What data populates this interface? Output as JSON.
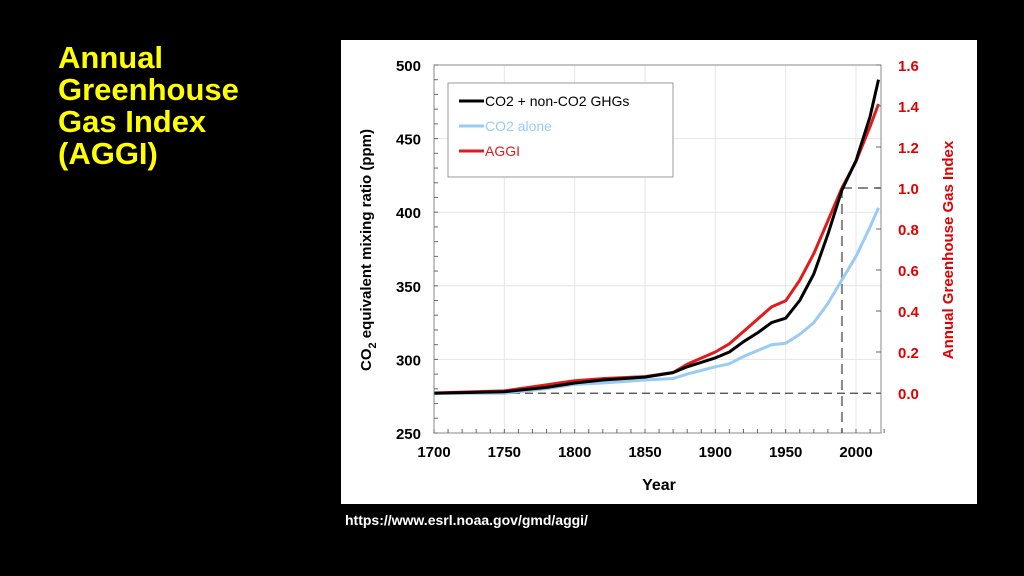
{
  "slide": {
    "title": "Annual\nGreenhouse\nGas Index\n(AGGI)",
    "source_url": "https://www.esrl.noaa.gov/gmd/aggi/"
  },
  "colors": {
    "background": "#000000",
    "title": "#ffff00",
    "black_series": "#000000",
    "blue_series": "#99ccf5",
    "red_series": "#e31a1c",
    "right_axis": "#e00000"
  },
  "chart_data": {
    "type": "line",
    "title": "",
    "xlabel": "Year",
    "ylabel": "CO2 equivalent mixing ratio (ppm)",
    "ylabel_right": "Annual Greenhouse Gas Index",
    "xlim": [
      1700,
      2020
    ],
    "ylim": [
      250,
      500
    ],
    "ylim_right": [
      -0.0,
      1.6
    ],
    "x_ticks": [
      "1700",
      "1750",
      "1800",
      "1850",
      "1900",
      "1950",
      "2000"
    ],
    "y_ticks": [
      "250",
      "300",
      "350",
      "400",
      "450",
      "500"
    ],
    "y_ticks_right": [
      "0.0",
      "0.2",
      "0.4",
      "0.6",
      "0.8",
      "1.0",
      "1.2",
      "1.4",
      "1.6"
    ],
    "grid": true,
    "legend_position": "top-left",
    "reference_lines": {
      "baseline_ppm": 277,
      "aggi_reference_year": 1990,
      "aggi_reference_value": 1.0
    },
    "x": [
      1700,
      1750,
      1760,
      1780,
      1800,
      1820,
      1850,
      1870,
      1880,
      1900,
      1910,
      1920,
      1930,
      1940,
      1950,
      1960,
      1970,
      1980,
      1990,
      2000,
      2010,
      2016
    ],
    "series": [
      {
        "name": "CO2 + non-CO2 GHGs",
        "axis": "left",
        "values": [
          277,
          278,
          279,
          281,
          284,
          286,
          288,
          291,
          295,
          301,
          305,
          312,
          318,
          325,
          328,
          340,
          358,
          385,
          415,
          435,
          465,
          490
        ]
      },
      {
        "name": "CO2 alone",
        "axis": "left",
        "values": [
          277,
          277,
          278,
          280,
          283,
          284,
          286,
          287,
          290,
          295,
          297,
          302,
          306,
          310,
          311,
          317,
          325,
          338,
          354,
          370,
          390,
          403
        ]
      },
      {
        "name": "AGGI",
        "axis": "right",
        "values": [
          0.0,
          0.01,
          0.02,
          0.04,
          0.06,
          0.07,
          0.08,
          0.1,
          0.14,
          0.2,
          0.24,
          0.3,
          0.36,
          0.42,
          0.45,
          0.55,
          0.68,
          0.84,
          1.0,
          1.13,
          1.3,
          1.41
        ]
      }
    ]
  }
}
